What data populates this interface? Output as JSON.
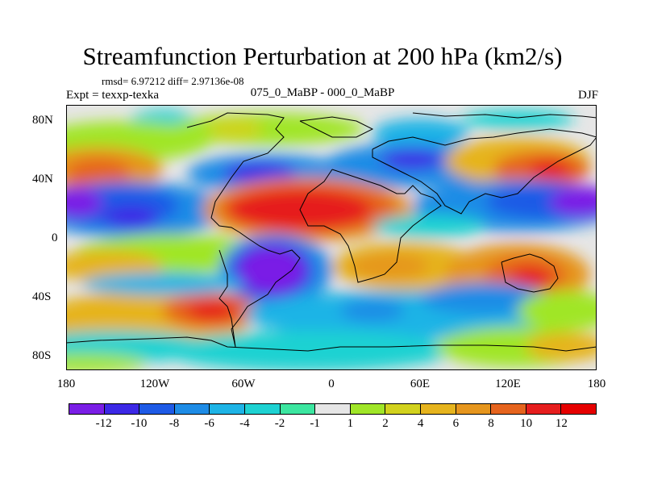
{
  "title": "Streamfunction Perturbation at 200 hPa (km2/s)",
  "stats": "rmsd= 6.97212 diff= 2.97136e-08",
  "expt": "Expt = texxp-texka",
  "difference_label": "075_0_MaBP - 000_0_MaBP",
  "season": "DJF",
  "map": {
    "lat_ticks": [
      "80N",
      "40N",
      "0",
      "40S",
      "80S"
    ],
    "lon_ticks": [
      "180",
      "120W",
      "60W",
      "0",
      "60E",
      "120E",
      "180"
    ],
    "levels": [
      "-12",
      "-10",
      "-8",
      "-6",
      "-4",
      "-2",
      "-1",
      "1",
      "2",
      "4",
      "6",
      "8",
      "10",
      "12"
    ],
    "palette": [
      "#7a1ee6",
      "#3c28e6",
      "#1e5ae6",
      "#1e8ce6",
      "#1eb4e6",
      "#1ed2d2",
      "#3ce6a0",
      "#e6e6e6",
      "#a0e628",
      "#d2d21e",
      "#e6b41e",
      "#e6961e",
      "#e6641e",
      "#e61e1e",
      "#e60000"
    ]
  }
}
